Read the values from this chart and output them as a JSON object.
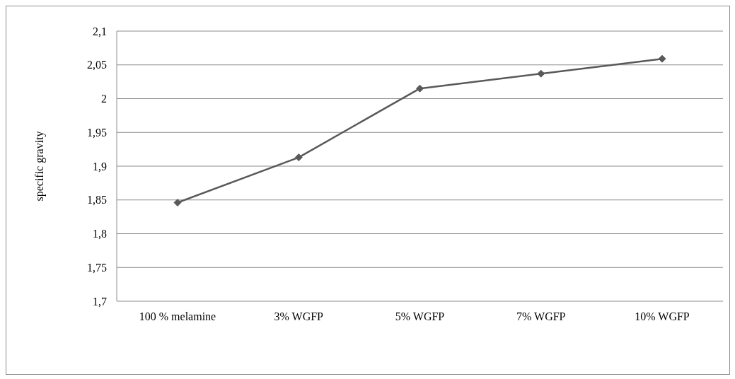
{
  "chart_data": {
    "type": "line",
    "ylabel": "specific gravity",
    "categories": [
      "100 % melamine",
      "3% WGFP",
      "5% WGFP",
      "7% WGFP",
      "10% WGFP"
    ],
    "series": [
      {
        "color": "#595959",
        "values": [
          1.846,
          1.913,
          2.015,
          2.037,
          2.059
        ]
      }
    ],
    "ylim": [
      1.7,
      2.1
    ],
    "yticks": [
      {
        "value": 1.7,
        "label": "1,7"
      },
      {
        "value": 1.75,
        "label": "1,75"
      },
      {
        "value": 1.8,
        "label": "1,8"
      },
      {
        "value": 1.85,
        "label": "1,85"
      },
      {
        "value": 1.9,
        "label": "1,9"
      },
      {
        "value": 1.95,
        "label": "1,95"
      },
      {
        "value": 2,
        "label": "2"
      },
      {
        "value": 2.05,
        "label": "2,05"
      },
      {
        "value": 2.1,
        "label": "2,1"
      }
    ],
    "grid": "y",
    "marker": "diamond",
    "line_style": "solid"
  }
}
